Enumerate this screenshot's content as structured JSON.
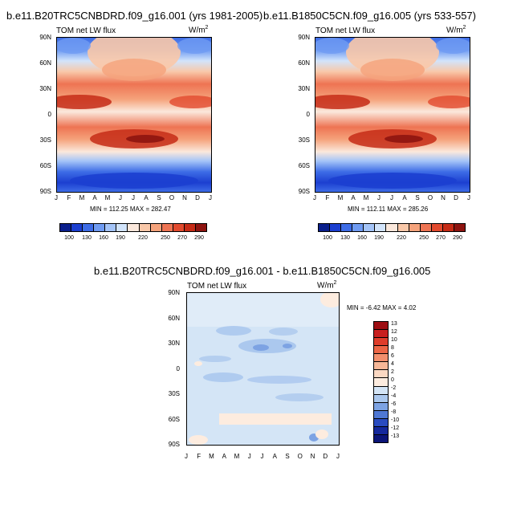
{
  "chart_data": [
    {
      "type": "heatmap",
      "title": "b.e11.B20TRC5CNBDRD.f09_g16.001 (yrs 1981-2005)",
      "variable": "TOM net LW flux",
      "units": "W/m",
      "units_exp": "2",
      "x_ticks": [
        "J",
        "F",
        "M",
        "A",
        "M",
        "J",
        "J",
        "A",
        "S",
        "O",
        "N",
        "D",
        "J"
      ],
      "y_ticks": [
        "90N",
        "60N",
        "30N",
        "0",
        "30S",
        "60S",
        "90S"
      ],
      "stats": "MIN = 112.25 MAX = 282.47",
      "colorbar_levels": [
        "100",
        "130",
        "160",
        "190",
        "220",
        "250",
        "270",
        "290"
      ]
    },
    {
      "type": "heatmap",
      "title": "b.e11.B1850C5CN.f09_g16.005 (yrs 533-557)",
      "variable": "TOM net LW flux",
      "units": "W/m",
      "units_exp": "2",
      "x_ticks": [
        "J",
        "F",
        "M",
        "A",
        "M",
        "J",
        "J",
        "A",
        "S",
        "O",
        "N",
        "D",
        "J"
      ],
      "y_ticks": [
        "90N",
        "60N",
        "30N",
        "0",
        "30S",
        "60S",
        "90S"
      ],
      "stats": "MIN = 112.11 MAX = 285.26",
      "colorbar_levels": [
        "100",
        "130",
        "160",
        "190",
        "220",
        "250",
        "270",
        "290"
      ]
    },
    {
      "type": "heatmap",
      "title": "b.e11.B20TRC5CNBDRD.f09_g16.001 - b.e11.B1850C5CN.f09_g16.005",
      "variable": "TOM net LW flux",
      "units": "W/m",
      "units_exp": "2",
      "x_ticks": [
        "J",
        "F",
        "M",
        "A",
        "M",
        "J",
        "J",
        "A",
        "S",
        "O",
        "N",
        "D",
        "J"
      ],
      "y_ticks": [
        "90N",
        "60N",
        "30N",
        "0",
        "30S",
        "60S",
        "90S"
      ],
      "stats": "MIN =  -6.42 MAX =   4.02",
      "colorbar_levels": [
        "13",
        "12",
        "10",
        "8",
        "6",
        "4",
        "2",
        "0",
        "-2",
        "-4",
        "-6",
        "-8",
        "-10",
        "-12",
        "-13"
      ]
    }
  ],
  "colors": {
    "abs_scale": [
      "#0a1f8c",
      "#1c3fd0",
      "#3d6ce6",
      "#6f9bf2",
      "#a4c4f8",
      "#d2e4fb",
      "#fbe8dc",
      "#f9c8a9",
      "#f5a37c",
      "#ee7453",
      "#e24a2e",
      "#c62b16",
      "#8e1410"
    ],
    "diff_scale": [
      "#9d0d12",
      "#c81f1f",
      "#df3d2b",
      "#ec6646",
      "#f28f6d",
      "#f7b797",
      "#fbd8c2",
      "#fdecdf",
      "#d4e5f6",
      "#abc8ee",
      "#7da3e3",
      "#4f78d4",
      "#2a4cc0",
      "#15299c",
      "#0b1578"
    ]
  }
}
